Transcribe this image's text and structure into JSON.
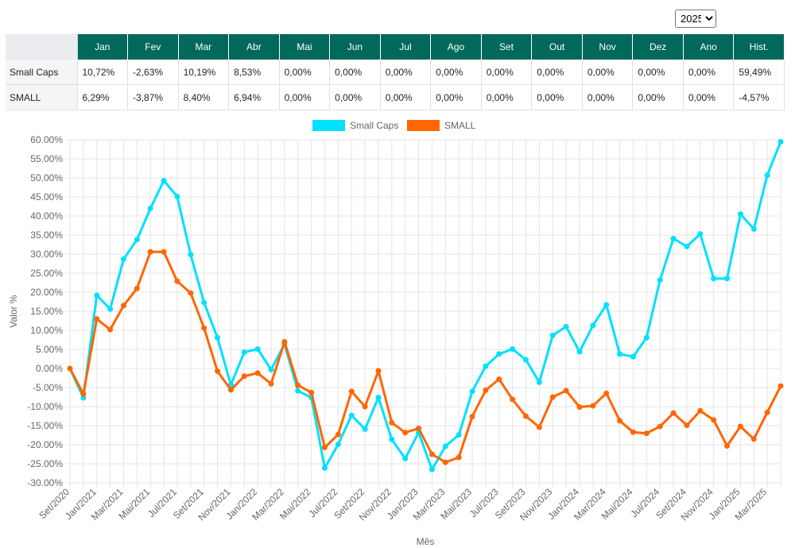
{
  "year_select": {
    "value": "2025",
    "options": [
      "2025"
    ]
  },
  "table": {
    "headers": [
      "Jan",
      "Fev",
      "Mar",
      "Abr",
      "Mai",
      "Jun",
      "Jul",
      "Ago",
      "Set",
      "Out",
      "Nov",
      "Dez",
      "Ano",
      "Hist."
    ],
    "rows": [
      {
        "label": "Small Caps",
        "values": [
          "10,72%",
          "-2,63%",
          "10,19%",
          "8,53%",
          "0,00%",
          "0,00%",
          "0,00%",
          "0,00%",
          "0,00%",
          "0,00%",
          "0,00%",
          "0,00%",
          "0,00%",
          "59,49%"
        ]
      },
      {
        "label": "SMALL",
        "values": [
          "6,29%",
          "-3,87%",
          "8,40%",
          "6,94%",
          "0,00%",
          "0,00%",
          "0,00%",
          "0,00%",
          "0,00%",
          "0,00%",
          "0,00%",
          "0,00%",
          "0,00%",
          "-4,57%"
        ]
      }
    ]
  },
  "chart_data": {
    "type": "line",
    "xlabel": "Mês",
    "ylabel": "Valor %",
    "ylim": [
      -30,
      60
    ],
    "ytick_step": 5,
    "grid": true,
    "legend_position": "top-center",
    "x_tick_labels": [
      "Set/2020",
      "Jan/2021",
      "Mar/2021",
      "Mai/2021",
      "Jul/2021",
      "Set/2021",
      "Nov/2021",
      "Jan/2022",
      "Mar/2022",
      "Mai/2022",
      "Jul/2022",
      "Set/2022",
      "Nov/2022",
      "Jan/2023",
      "Mar/2023",
      "Mai/2023",
      "Jul/2023",
      "Set/2023",
      "Nov/2023",
      "Jan/2024",
      "Mar/2024",
      "Mai/2024",
      "Jul/2024",
      "Set/2024",
      "Nov/2024",
      "Jan/2025",
      "Mar/2025"
    ],
    "x_tick_every": 2,
    "series": [
      {
        "name": "Small Caps",
        "color": "#00e0ff",
        "values": [
          0.0,
          -7.7,
          19.2,
          15.6,
          28.7,
          33.8,
          42.0,
          49.3,
          45.1,
          29.9,
          17.3,
          8.1,
          -4.3,
          4.3,
          5.1,
          -0.3,
          6.4,
          -5.9,
          -7.6,
          -26.1,
          -19.9,
          -12.3,
          -15.9,
          -7.6,
          -18.6,
          -23.6,
          -16.8,
          -26.5,
          -20.4,
          -17.4,
          -6.0,
          0.6,
          3.8,
          5.1,
          2.3,
          -3.6,
          8.7,
          11.0,
          4.4,
          11.3,
          16.7,
          3.8,
          3.1,
          8.1,
          23.2,
          34.1,
          32.0,
          35.3,
          23.6,
          23.6,
          40.5,
          36.6,
          50.7,
          59.5
        ]
      },
      {
        "name": "SMALL",
        "color": "#ff6600",
        "values": [
          0.0,
          -6.7,
          13.0,
          10.2,
          16.5,
          21.0,
          30.6,
          30.6,
          22.9,
          19.8,
          10.6,
          -0.7,
          -5.6,
          -2.0,
          -1.2,
          -4.0,
          7.0,
          -4.4,
          -6.3,
          -20.7,
          -17.3,
          -6.0,
          -10.0,
          -0.6,
          -14.2,
          -16.8,
          -15.7,
          -22.5,
          -24.6,
          -23.3,
          -12.6,
          -5.7,
          -2.8,
          -8.1,
          -12.5,
          -15.4,
          -7.5,
          -5.8,
          -10.1,
          -9.8,
          -6.5,
          -13.7,
          -16.7,
          -17.0,
          -15.2,
          -11.7,
          -14.9,
          -11.1,
          -13.5,
          -20.3,
          -15.2,
          -18.5,
          -11.5,
          -4.6
        ]
      }
    ]
  }
}
